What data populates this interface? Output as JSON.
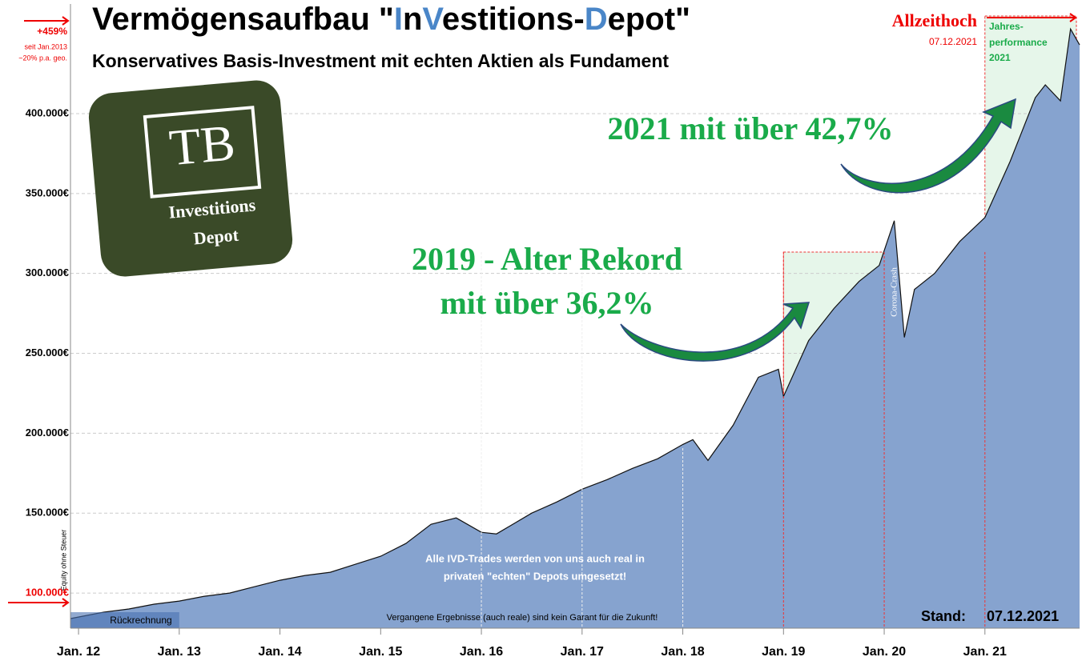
{
  "chart_data": {
    "type": "area",
    "title": [
      {
        "text": "Vermögensaufbau \"",
        "color": "#000000"
      },
      {
        "text": "I",
        "color": "#4a86c8"
      },
      {
        "text": "n",
        "color": "#000000"
      },
      {
        "text": "V",
        "color": "#4a86c8"
      },
      {
        "text": "estitions-",
        "color": "#000000"
      },
      {
        "text": "D",
        "color": "#4a86c8"
      },
      {
        "text": "epot\"",
        "color": "#000000"
      }
    ],
    "subtitle": "Konservatives Basis-Investment mit echten Aktien als Fundament",
    "y_label": "Equity ohne Steuer",
    "logo": {
      "big": "TB",
      "line1": "Investitions",
      "line2": "Depot"
    },
    "annotations": {
      "gain": "+459%",
      "since": "seit Jan.2013",
      "pa": "~20% p.a. geo.",
      "ath": "Allzeithoch",
      "ath_date": "07.12.2021",
      "perf1": "Jahres-",
      "perf2": "performance",
      "perf3": "2021",
      "y2021": "2021 mit über 42,7%",
      "y2019a": "2019 - Alter Rekord",
      "y2019b": "mit über 36,2%",
      "crash": "Corona-Crash",
      "real1": "Alle IVD-Trades werden von uns auch real in",
      "real2": "privaten \"echten\" Depots umgesetzt!",
      "disclaimer": "Vergangene Ergebnisse (auch reale) sind kein Garant für die Zukunft!",
      "backcalc": "Rückrechnung",
      "stand": "Stand:",
      "stand_date": "07.12.2021"
    },
    "x": [
      2011.92,
      2012.25,
      2012.5,
      2012.75,
      2013.0,
      2013.25,
      2013.5,
      2013.75,
      2014.0,
      2014.25,
      2014.5,
      2014.75,
      2015.0,
      2015.25,
      2015.5,
      2015.75,
      2016.0,
      2016.15,
      2016.5,
      2016.75,
      2017.0,
      2017.25,
      2017.5,
      2017.75,
      2018.0,
      2018.1,
      2018.25,
      2018.5,
      2018.75,
      2018.95,
      2019.0,
      2019.25,
      2019.5,
      2019.75,
      2019.95,
      2020.1,
      2020.2,
      2020.3,
      2020.5,
      2020.75,
      2021.0,
      2021.25,
      2021.5,
      2021.6,
      2021.75,
      2021.85,
      2021.94
    ],
    "series": [
      {
        "name": "Equity",
        "color": "#86a3cf",
        "values": [
          84000,
          88000,
          90000,
          93000,
          95000,
          98000,
          100000,
          104000,
          108000,
          111000,
          113000,
          118000,
          123000,
          131000,
          143000,
          147000,
          138000,
          137000,
          150000,
          157000,
          165000,
          171000,
          178000,
          184000,
          193000,
          196000,
          183000,
          205000,
          235000,
          240000,
          223000,
          258000,
          278000,
          295000,
          305000,
          333000,
          260000,
          290000,
          300000,
          320000,
          335000,
          370000,
          410000,
          418000,
          408000,
          453000,
          443000
        ]
      }
    ],
    "xlim": [
      2011.92,
      2021.94
    ],
    "xticks": [
      {
        "value": 2012,
        "label": "Jan. 12"
      },
      {
        "value": 2013,
        "label": "Jan. 13"
      },
      {
        "value": 2014,
        "label": "Jan. 14"
      },
      {
        "value": 2015,
        "label": "Jan. 15"
      },
      {
        "value": 2016,
        "label": "Jan. 16"
      },
      {
        "value": 2017,
        "label": "Jan. 17"
      },
      {
        "value": 2018,
        "label": "Jan. 18"
      },
      {
        "value": 2019,
        "label": "Jan. 19"
      },
      {
        "value": 2020,
        "label": "Jan. 20"
      },
      {
        "value": 2021,
        "label": "Jan. 21"
      }
    ],
    "ylim": [
      78000,
      468600
    ],
    "yticks": [
      {
        "value": 100000,
        "label": "100.000€"
      },
      {
        "value": 150000,
        "label": "150.000€"
      },
      {
        "value": 200000,
        "label": "200.000€"
      },
      {
        "value": 250000,
        "label": "250.000€"
      },
      {
        "value": 300000,
        "label": "300.000€"
      },
      {
        "value": 350000,
        "label": "350.000€"
      },
      {
        "value": 400000,
        "label": "400.000€"
      }
    ],
    "grid": true
  }
}
